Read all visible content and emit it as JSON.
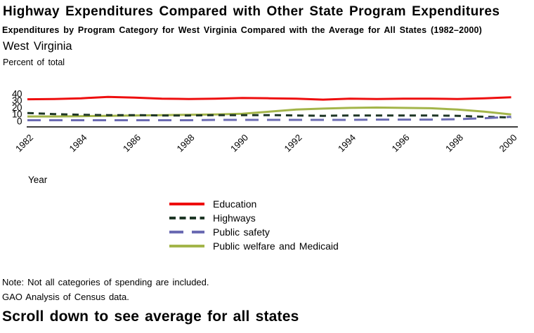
{
  "chart_data": {
    "type": "line",
    "title": "Highway Expenditures Compared with Other State Program Expenditures",
    "subtitle": "Expenditures by Program Category for West Virginia Compared with the Average for All States (1982–2000)",
    "region_label": "West Virginia",
    "xlabel": "Year",
    "ylabel": "Percent of total",
    "x": [
      1982,
      1983,
      1984,
      1985,
      1986,
      1987,
      1988,
      1989,
      1990,
      1991,
      1992,
      1993,
      1994,
      1995,
      1996,
      1997,
      1998,
      1999,
      2000
    ],
    "xtick_labels": [
      "1982",
      "1984",
      "1986",
      "1988",
      "1990",
      "1992",
      "1994",
      "1996",
      "1998",
      "2000"
    ],
    "yticks": [
      0,
      10,
      20,
      30,
      40
    ],
    "ylim": [
      0,
      40
    ],
    "grid": false,
    "legend_position": "below-chart",
    "series": [
      {
        "id": "education",
        "name": "Education",
        "color": "#ee0e0e",
        "dash": "solid",
        "values": [
          32,
          32.5,
          33.5,
          35.5,
          34.5,
          33,
          32.5,
          33,
          34,
          33.5,
          33,
          31.5,
          33,
          32.5,
          33,
          33,
          32.5,
          33.5,
          35
        ]
      },
      {
        "id": "highways",
        "name": "Highways",
        "color": "#1e3626",
        "dash": "short-dash",
        "values": [
          12,
          10.5,
          9.5,
          9,
          9,
          8.5,
          8.5,
          9,
          9,
          9,
          8.5,
          8,
          8.5,
          8.5,
          8.5,
          8.5,
          8,
          6.5,
          5.5
        ]
      },
      {
        "id": "public-safety",
        "name": "Public safety",
        "color": "#6b6bb3",
        "dash": "long-dash",
        "values": [
          1.5,
          1.5,
          1.5,
          1.5,
          1.5,
          1.5,
          1.5,
          2,
          2,
          2,
          2,
          2,
          2,
          2.5,
          2.5,
          2.5,
          3,
          4.5,
          6.5
        ]
      },
      {
        "id": "public-welfare",
        "name": "Public welfare and Medicaid",
        "color": "#a3b54a",
        "dash": "solid",
        "values": [
          7,
          7,
          7.5,
          8,
          8.5,
          9,
          9.5,
          10,
          11,
          14,
          17,
          18.5,
          19.5,
          20,
          19.5,
          19,
          17,
          14,
          10
        ]
      }
    ]
  },
  "notes": {
    "line1": "Note: Not all categories of spending are included.",
    "line2": "GAO Analysis of Census data."
  },
  "footer": {
    "text": "Scroll down to see average for all states"
  }
}
